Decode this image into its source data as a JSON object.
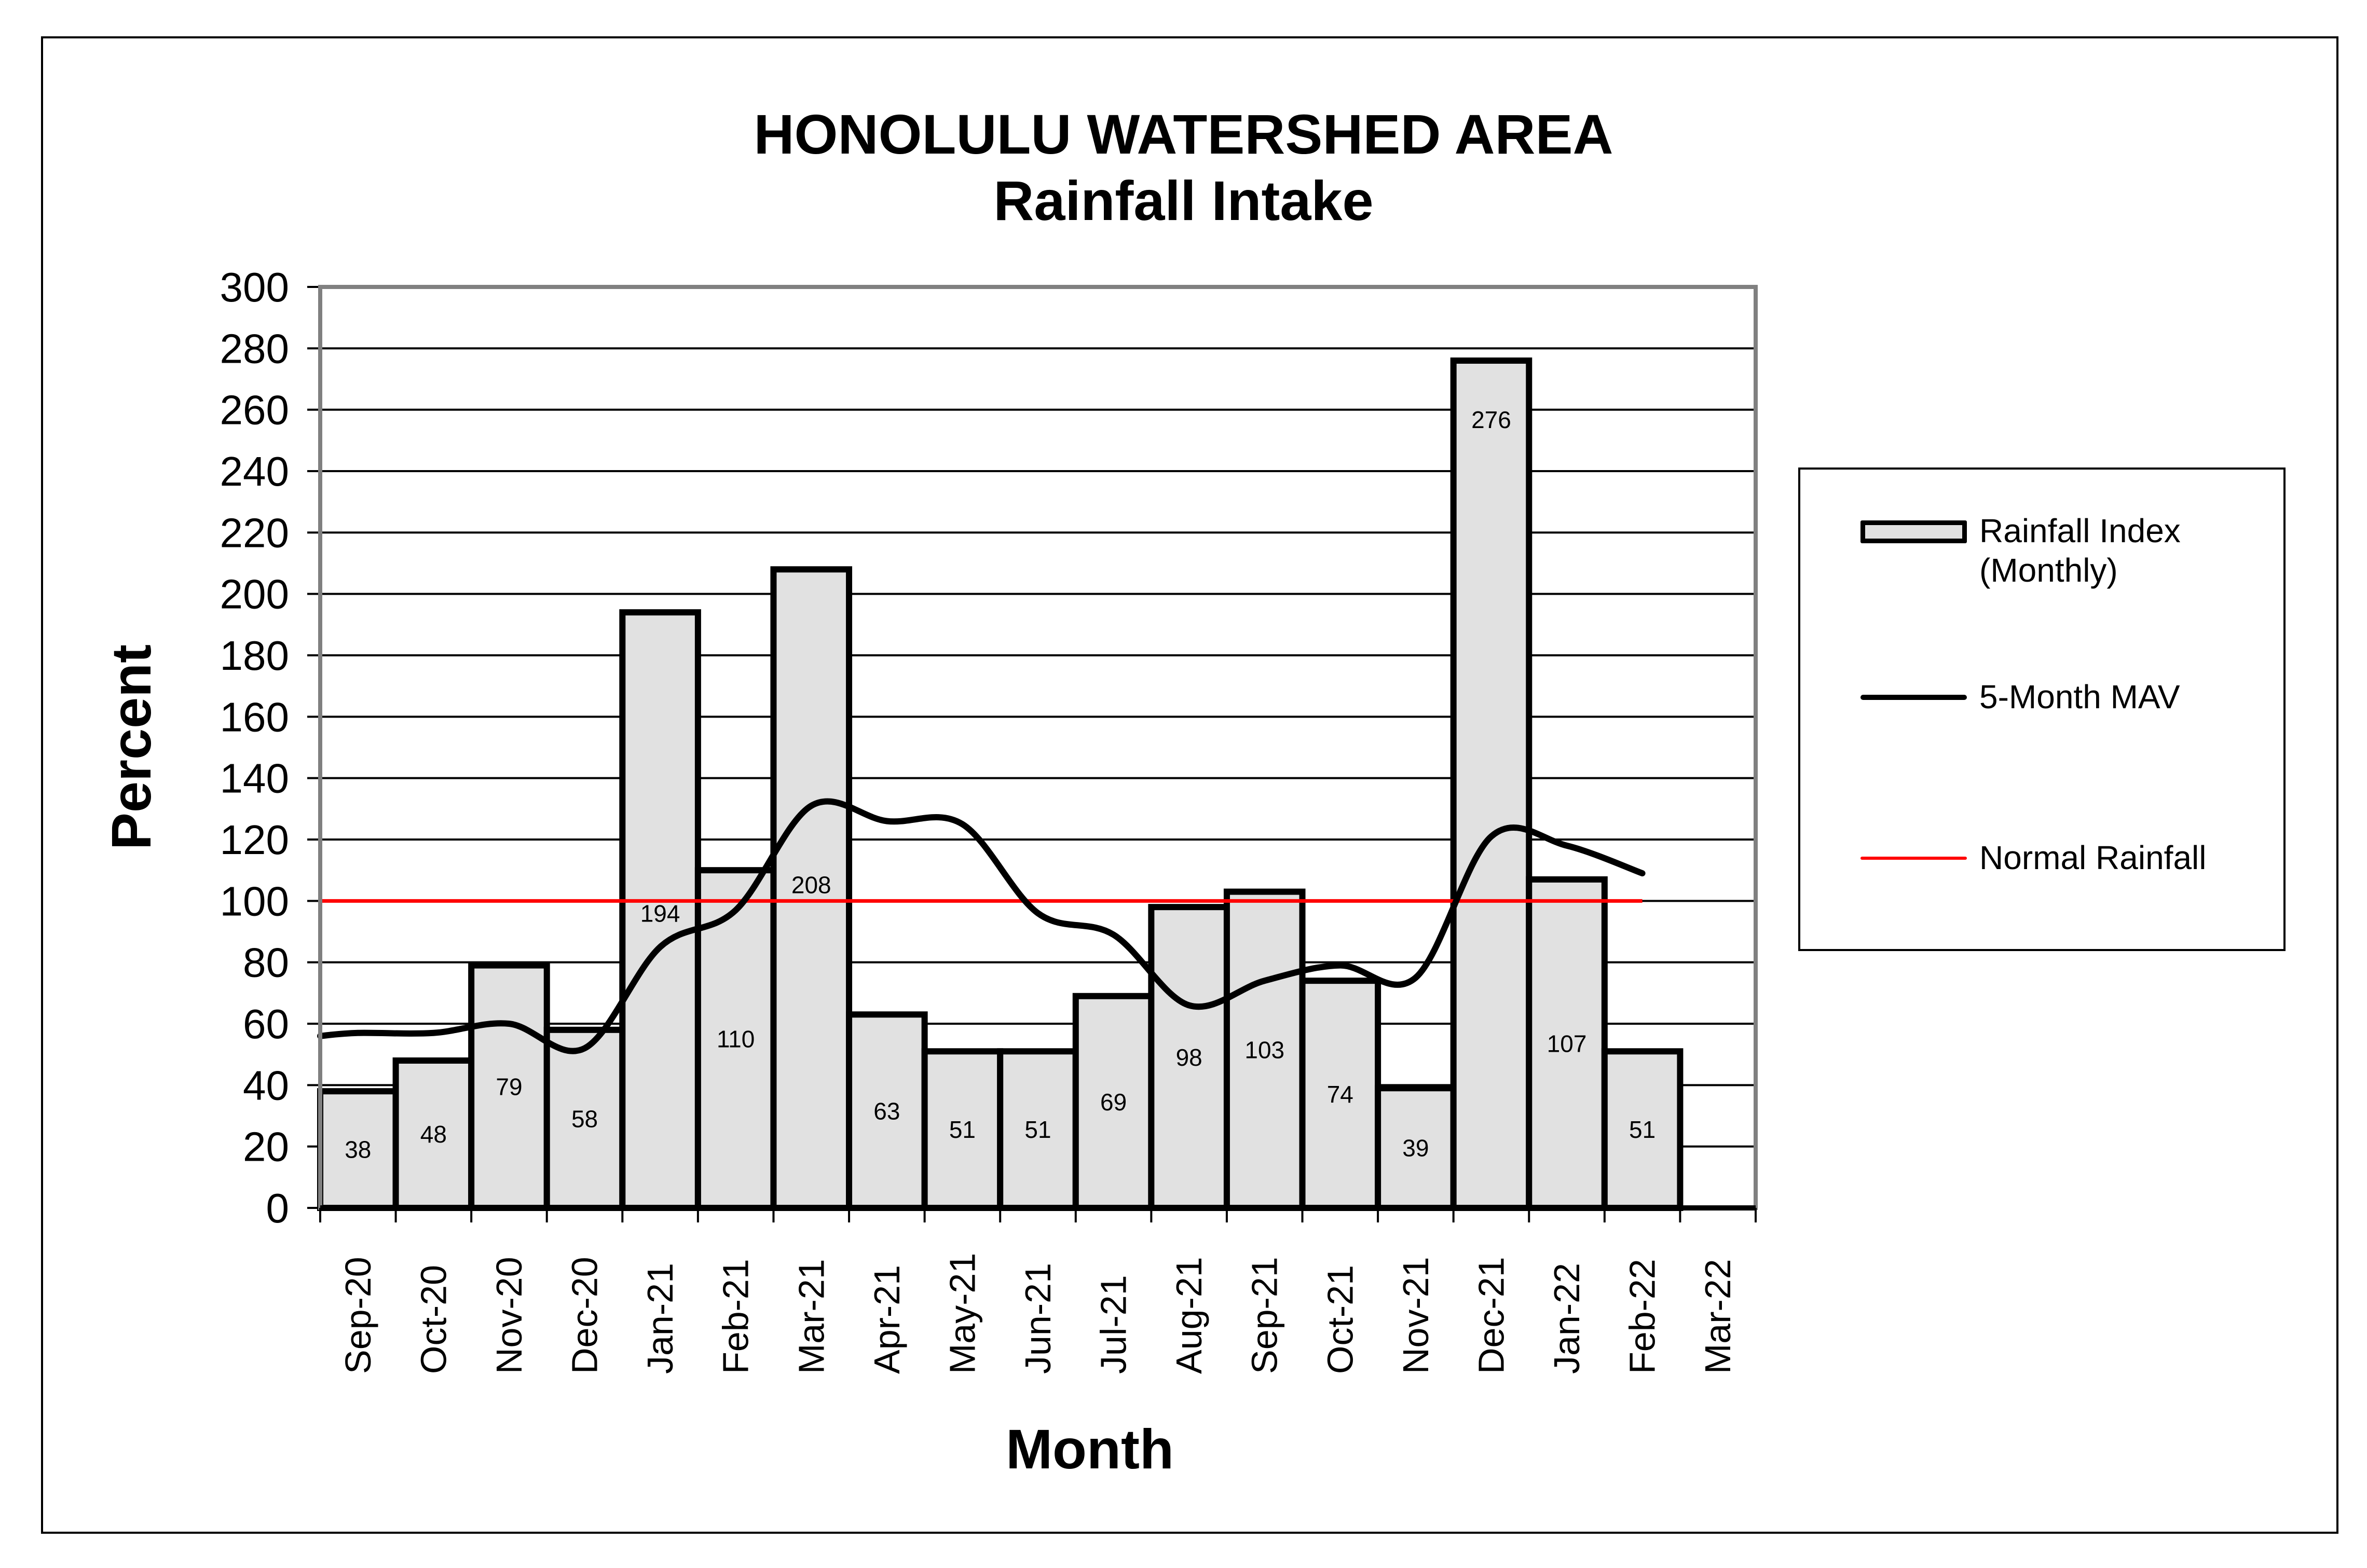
{
  "title": {
    "line1": "HONOLULU WATERSHED AREA",
    "line2": "Rainfall Intake"
  },
  "axes": {
    "ylabel": "Percent",
    "xlabel": "Month",
    "yticks": [
      "0",
      "20",
      "40",
      "60",
      "80",
      "100",
      "120",
      "140",
      "160",
      "180",
      "200",
      "220",
      "240",
      "260",
      "280",
      "300"
    ]
  },
  "legend": {
    "items": [
      {
        "label": "Rainfall Index\n(Monthly)",
        "type": "bar"
      },
      {
        "label": "5-Month MAV",
        "type": "line"
      },
      {
        "label": "Normal Rainfall",
        "type": "line"
      }
    ]
  },
  "colors": {
    "bar_fill": "#e1e1e1",
    "bar_edge": "#000000",
    "mav_line": "#000000",
    "normal_line": "#ff0000",
    "grid": "#000000",
    "plot_border": "#808080"
  },
  "chart_data": {
    "type": "bar",
    "title": "HONOLULU WATERSHED AREA Rainfall Intake",
    "xlabel": "Month",
    "ylabel": "Percent",
    "ylim": [
      0,
      300
    ],
    "grid": true,
    "legend_position": "right",
    "categories": [
      "Sep-20",
      "Oct-20",
      "Nov-20",
      "Dec-20",
      "Jan-21",
      "Feb-21",
      "Mar-21",
      "Apr-21",
      "May-21",
      "Jun-21",
      "Jul-21",
      "Aug-21",
      "Sep-21",
      "Oct-21",
      "Nov-21",
      "Dec-21",
      "Jan-22",
      "Feb-22",
      "Mar-22"
    ],
    "series": [
      {
        "name": "Rainfall Index (Monthly)",
        "type": "bar",
        "values": [
          38,
          48,
          79,
          58,
          194,
          110,
          208,
          63,
          51,
          51,
          69,
          98,
          103,
          74,
          39,
          276,
          107,
          51,
          null
        ]
      },
      {
        "name": "5-Month MAV",
        "type": "line",
        "values": [
          57,
          57,
          60,
          52,
          85,
          97,
          131,
          126,
          125,
          96,
          89,
          66,
          74,
          79,
          75,
          121,
          118,
          109,
          null
        ]
      },
      {
        "name": "Normal Rainfall",
        "type": "line",
        "values": [
          100,
          100,
          100,
          100,
          100,
          100,
          100,
          100,
          100,
          100,
          100,
          100,
          100,
          100,
          100,
          100,
          100,
          100,
          null
        ]
      }
    ]
  }
}
